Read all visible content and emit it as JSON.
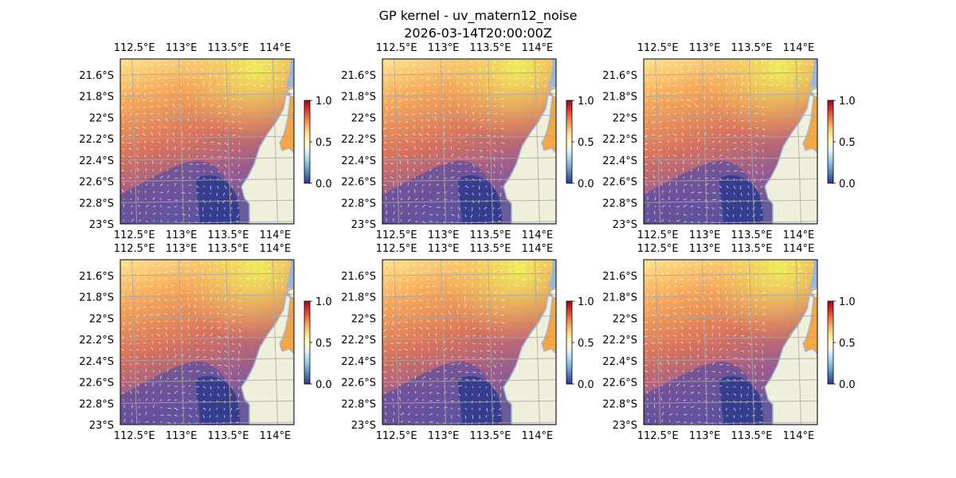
{
  "figure": {
    "title": "GP kernel - uv_matern12_noise",
    "subtitle": "2026-03-14T20:00:00Z"
  },
  "map": {
    "lon_range": [
      112.35,
      114.2
    ],
    "lat_range": [
      -23.0,
      -21.45
    ],
    "lon_ticks": [
      112.5,
      113.0,
      113.5,
      114.0
    ],
    "lon_tick_labels": [
      "112.5°E",
      "113°E",
      "113.5°E",
      "114°E"
    ],
    "lat_ticks": [
      -21.6,
      -21.8,
      -22.0,
      -22.2,
      -22.4,
      -22.6,
      -22.8,
      -23.0
    ],
    "lat_tick_labels": [
      "21.6°S",
      "21.8°S",
      "22°S",
      "22.2°S",
      "22.4°S",
      "22.6°S",
      "22.8°S",
      "23°S"
    ],
    "gridlines": true,
    "colormap": "RdYlBu_r",
    "land_color": "#efefdb",
    "ocean_edge_color": "#9bb5dc",
    "vector_color": "#ffffff"
  },
  "colorbar": {
    "ticks": [
      0.0,
      0.5,
      1.0
    ],
    "tick_labels": [
      "0.0",
      "0.5",
      "1.0"
    ],
    "range": [
      0.0,
      1.0
    ],
    "stops": [
      "#313695",
      "#4575b4",
      "#74add1",
      "#abd9e9",
      "#e0f3f8",
      "#ffffbf",
      "#fee090",
      "#fdae61",
      "#f46d43",
      "#d73027",
      "#a50026"
    ]
  },
  "panels": [
    {
      "id": "r1c1",
      "colorbar": true
    },
    {
      "id": "r1c2",
      "colorbar": true
    },
    {
      "id": "r1c3",
      "colorbar": true
    },
    {
      "id": "r2c1",
      "colorbar": true
    },
    {
      "id": "r2c2",
      "colorbar": true
    },
    {
      "id": "r2c3",
      "colorbar": true
    }
  ]
}
